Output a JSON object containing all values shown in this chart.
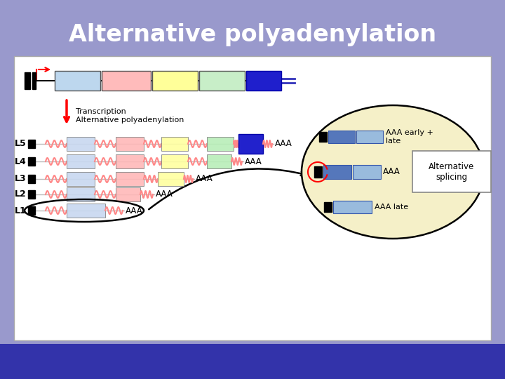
{
  "title": "Alternative polyadenylation",
  "title_color": "#FFFFFF",
  "title_fontsize": 24,
  "title_fontweight": "bold",
  "bg_color": "#9999CC",
  "panel_bg": "#FFFFFF",
  "panel_ellipse_bg": "#F5F0C8",
  "aaa_label": "AAA",
  "transcription_label": "Transcription\nAlternative polyadenylation",
  "early_late_label": "AAA early +\nlate",
  "late_label": "AAA late",
  "aaa_middle_label": "AAA",
  "alt_splicing_label": "Alternative\nsplicing",
  "transcript_labels": [
    "L5",
    "L4",
    "L3",
    "L2",
    "L1"
  ],
  "gene_exon_colors": [
    "#BDD7EE",
    "#FFBBBB",
    "#FFFF99",
    "#C8EEC8",
    "#1F1FCC"
  ],
  "bottom_bg_color": "#3333AA"
}
